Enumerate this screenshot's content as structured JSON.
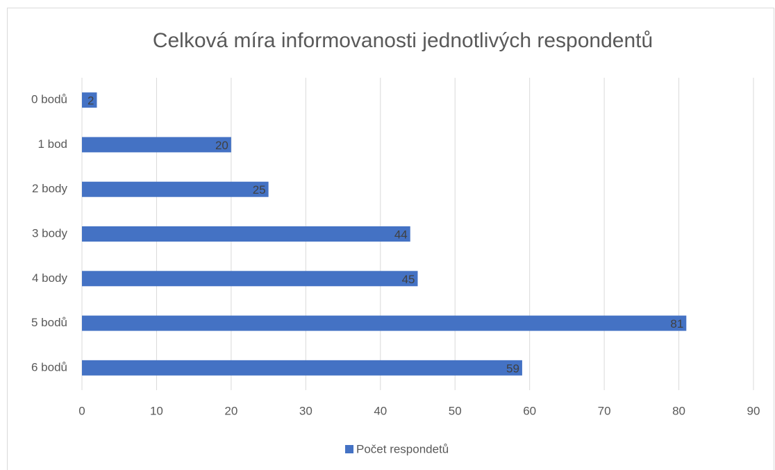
{
  "chart_data": {
    "type": "bar",
    "orientation": "horizontal",
    "title": "Celková míra informovanosti jednotlivých respondentů",
    "categories": [
      "0 bodů",
      "1 bod",
      "2 body",
      "3 body",
      "4 body",
      "5 bodů",
      "6 bodů"
    ],
    "series": [
      {
        "name": "Počet respondetů",
        "color": "#4472c4",
        "values": [
          2,
          20,
          25,
          44,
          45,
          81,
          59
        ]
      }
    ],
    "xlim": [
      0,
      90
    ],
    "xticks": [
      0,
      10,
      20,
      30,
      40,
      50,
      60,
      70,
      80,
      90
    ],
    "grid": true,
    "data_labels": true,
    "legend": "bottom"
  }
}
